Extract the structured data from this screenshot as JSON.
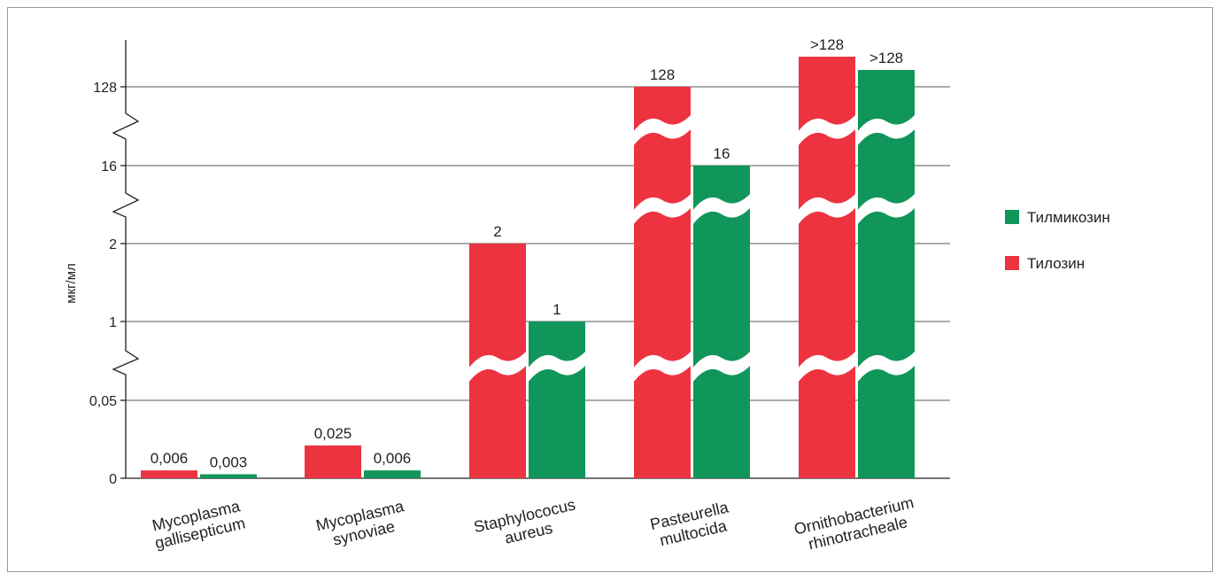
{
  "chart_data": {
    "type": "bar",
    "title": "",
    "xlabel": "",
    "ylabel": "мкг/мл",
    "y_scale": "broken (non-linear, axis breaks between ticks)",
    "y_ticks": [
      "0",
      "0,05",
      "1",
      "2",
      "16",
      "128"
    ],
    "categories": [
      [
        "Mycoplasma",
        "gallisepticum"
      ],
      [
        "Mycoplasma",
        "synoviae"
      ],
      [
        "Staphylococus",
        "aureus"
      ],
      [
        "Pasteurella",
        "multocida"
      ],
      [
        "Ornithobacterium",
        "rhinotracheale"
      ]
    ],
    "series": [
      {
        "name": "Тилозин",
        "color": "#ee3340",
        "values": [
          0.006,
          0.025,
          2,
          128,
          128
        ],
        "labels": [
          "0,006",
          "0,025",
          "2",
          "128",
          ">128"
        ]
      },
      {
        "name": "Тилмикозин",
        "color": "#10965a",
        "values": [
          0.003,
          0.006,
          1,
          16,
          128
        ],
        "labels": [
          "0,003",
          "0,006",
          "1",
          "16",
          ">128"
        ]
      }
    ],
    "legend": {
      "position": "right",
      "items": [
        {
          "label": "Тилмикозин",
          "color": "#10965a"
        },
        {
          "label": "Тилозин",
          "color": "#ee3340"
        }
      ]
    },
    "grid": true
  }
}
